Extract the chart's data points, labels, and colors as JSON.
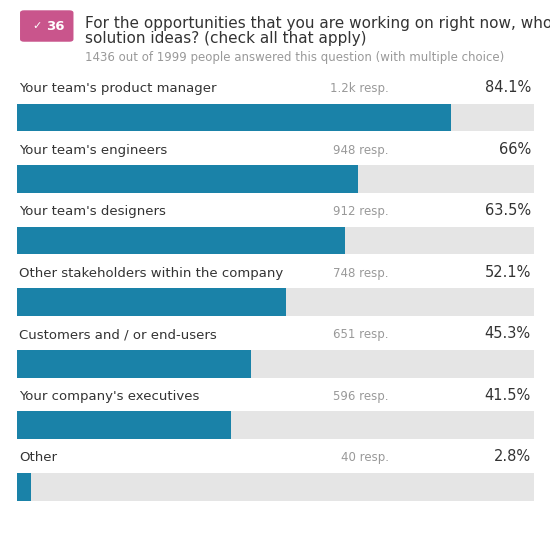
{
  "question_number": "36",
  "question_line1": "For the opportunities that you are working on right now, who contributed",
  "question_line2": "solution ideas? (check all that apply)",
  "subtitle": "1436 out of 1999 people answered this question (with multiple choice)",
  "categories": [
    "Your team's product manager",
    "Your team's engineers",
    "Your team's designers",
    "Other stakeholders within the company",
    "Customers and / or end-users",
    "Your company's executives",
    "Other"
  ],
  "responses": [
    "1.2k resp.",
    "948 resp.",
    "912 resp.",
    "748 resp.",
    "651 resp.",
    "596 resp.",
    "40 resp."
  ],
  "percentages": [
    84.1,
    66.0,
    63.5,
    52.1,
    45.3,
    41.5,
    2.8
  ],
  "pct_labels": [
    "84.1%",
    "66%",
    "63.5%",
    "52.1%",
    "45.3%",
    "41.5%",
    "2.8%"
  ],
  "bar_color": "#1a82a8",
  "bg_bar_color": "#e5e5e5",
  "bar_height": 0.45,
  "xlim": [
    0,
    100
  ],
  "title_fontsize": 11.0,
  "subtitle_fontsize": 8.5,
  "label_fontsize": 9.5,
  "resp_fontsize": 8.5,
  "pct_fontsize": 10.5,
  "badge_color": "#c9558c",
  "badge_text_color": "#ffffff",
  "background_color": "#ffffff",
  "text_color": "#333333",
  "resp_color": "#999999"
}
